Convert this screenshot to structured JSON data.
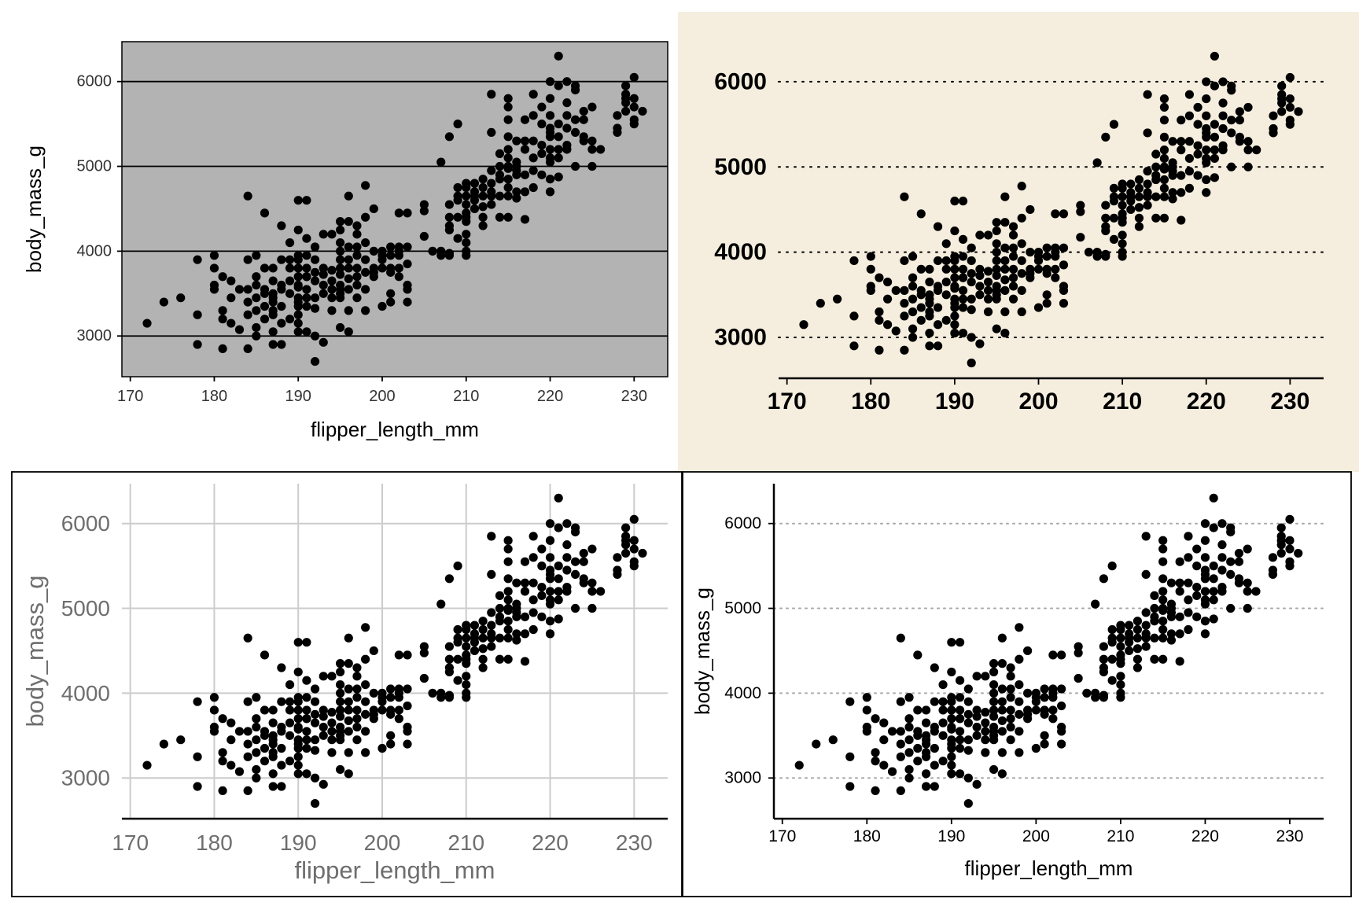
{
  "colors": {
    "point": "#000000",
    "panel_grey_bg": "#b3b3b3",
    "panel_beige_bg": "#f5eede",
    "light_gridline": "#cccccc",
    "muted_text": "#6e6e6e",
    "dotted_grid_light": "#a8a8a8"
  },
  "chart_data": [
    {
      "type": "scatter",
      "panel": "top-left",
      "style": "grey panel background, solid black horizontal major gridlines, plot box border",
      "xlabel": "flipper_length_mm",
      "ylabel": "body_mass_g",
      "xlim": [
        169,
        234
      ],
      "ylim": [
        2520,
        6470
      ],
      "x_ticks": [
        "170",
        "180",
        "190",
        "200",
        "210",
        "220",
        "230"
      ],
      "y_ticks": [
        "3000",
        "4000",
        "5000",
        "6000"
      ],
      "grid": "horizontal-major",
      "legend": "none",
      "source": "points"
    },
    {
      "type": "scatter",
      "panel": "top-right",
      "style": "beige background, dotted horizontal gridlines, bold large tick labels, x axis line only, no axis titles",
      "xlabel": "",
      "ylabel": "",
      "xlim": [
        169,
        234
      ],
      "ylim": [
        2520,
        6470
      ],
      "x_ticks": [
        "170",
        "180",
        "190",
        "200",
        "210",
        "220",
        "230"
      ],
      "y_ticks": [
        "3000",
        "4000",
        "5000",
        "6000"
      ],
      "grid": "horizontal-major-dotted",
      "legend": "none",
      "source": "points"
    },
    {
      "type": "scatter",
      "panel": "bottom-left",
      "style": "white background, light grey major gridlines both axes, grey text, x axis line, outer border",
      "xlabel": "flipper_length_mm",
      "ylabel": "body_mass_g",
      "xlim": [
        169,
        234
      ],
      "ylim": [
        2520,
        6470
      ],
      "x_ticks": [
        "170",
        "180",
        "190",
        "200",
        "210",
        "220",
        "230"
      ],
      "y_ticks": [
        "3000",
        "4000",
        "5000",
        "6000"
      ],
      "grid": "major-both",
      "legend": "none",
      "source": "points"
    },
    {
      "type": "scatter",
      "panel": "bottom-right",
      "style": "white background, light grey dotted horizontal gridlines, x and y axis lines with ticks, outer border",
      "xlabel": "flipper_length_mm",
      "ylabel": "body_mass_g",
      "xlim": [
        169,
        234
      ],
      "ylim": [
        2520,
        6470
      ],
      "x_ticks": [
        "170",
        "180",
        "190",
        "200",
        "210",
        "220",
        "230"
      ],
      "y_ticks": [
        "3000",
        "4000",
        "5000",
        "6000"
      ],
      "grid": "horizontal-major-dotted",
      "legend": "none",
      "source": "points"
    }
  ],
  "points": [
    [
      172,
      3150
    ],
    [
      174,
      3400
    ],
    [
      176,
      3450
    ],
    [
      178,
      3900
    ],
    [
      178,
      3250
    ],
    [
      178,
      2900
    ],
    [
      180,
      3950
    ],
    [
      180,
      3600
    ],
    [
      180,
      3550
    ],
    [
      180,
      3800
    ],
    [
      181,
      3300
    ],
    [
      181,
      3700
    ],
    [
      181,
      3200
    ],
    [
      181,
      2850
    ],
    [
      182,
      3150
    ],
    [
      182,
      3450
    ],
    [
      182,
      3650
    ],
    [
      183,
      3075
    ],
    [
      183,
      3550
    ],
    [
      184,
      3550
    ],
    [
      184,
      3900
    ],
    [
      184,
      3400
    ],
    [
      184,
      2850
    ],
    [
      184,
      4650
    ],
    [
      184,
      3250
    ],
    [
      185,
      3700
    ],
    [
      185,
      3450
    ],
    [
      185,
      3950
    ],
    [
      185,
      3600
    ],
    [
      185,
      3100
    ],
    [
      185,
      3000
    ],
    [
      185,
      3300
    ],
    [
      186,
      3350
    ],
    [
      186,
      3500
    ],
    [
      186,
      4450
    ],
    [
      186,
      3800
    ],
    [
      186,
      3550
    ],
    [
      186,
      3200
    ],
    [
      187,
      3450
    ],
    [
      187,
      3800
    ],
    [
      187,
      3650
    ],
    [
      187,
      3500
    ],
    [
      187,
      3250
    ],
    [
      187,
      3400
    ],
    [
      187,
      3050
    ],
    [
      187,
      2900
    ],
    [
      187,
      3300
    ],
    [
      188,
      3600
    ],
    [
      188,
      3900
    ],
    [
      188,
      3350
    ],
    [
      188,
      4300
    ],
    [
      188,
      3550
    ],
    [
      188,
      3150
    ],
    [
      188,
      2900
    ],
    [
      189,
      3500
    ],
    [
      189,
      3200
    ],
    [
      189,
      4100
    ],
    [
      189,
      3800
    ],
    [
      189,
      3650
    ],
    [
      189,
      3900
    ],
    [
      190,
      3700
    ],
    [
      190,
      4250
    ],
    [
      190,
      3450
    ],
    [
      190,
      3900
    ],
    [
      190,
      3350
    ],
    [
      190,
      3600
    ],
    [
      190,
      3050
    ],
    [
      190,
      3800
    ],
    [
      190,
      4600
    ],
    [
      190,
      3950
    ],
    [
      190,
      3400
    ],
    [
      190,
      3150
    ],
    [
      190,
      3250
    ],
    [
      190,
      3575
    ],
    [
      191,
      3700
    ],
    [
      191,
      3450
    ],
    [
      191,
      4600
    ],
    [
      191,
      3350
    ],
    [
      191,
      3050
    ],
    [
      191,
      3550
    ],
    [
      191,
      3800
    ],
    [
      191,
      3950
    ],
    [
      191,
      4150
    ],
    [
      191,
      3700
    ],
    [
      192,
      2700
    ],
    [
      192,
      3750
    ],
    [
      192,
      3650
    ],
    [
      192,
      3900
    ],
    [
      192,
      3000
    ],
    [
      192,
      3325
    ],
    [
      192,
      3450
    ],
    [
      192,
      4050
    ],
    [
      193,
      3725
    ],
    [
      193,
      4200
    ],
    [
      193,
      3500
    ],
    [
      193,
      3800
    ],
    [
      193,
      2925
    ],
    [
      193,
      3600
    ],
    [
      194,
      3775
    ],
    [
      194,
      3550
    ],
    [
      194,
      4200
    ],
    [
      194,
      3450
    ],
    [
      194,
      3650
    ],
    [
      194,
      3300
    ],
    [
      195,
      3725
    ],
    [
      195,
      3900
    ],
    [
      195,
      4000
    ],
    [
      195,
      3600
    ],
    [
      195,
      4350
    ],
    [
      195,
      3500
    ],
    [
      195,
      4250
    ],
    [
      195,
      3800
    ],
    [
      195,
      3100
    ],
    [
      195,
      4100
    ],
    [
      195,
      3550
    ],
    [
      195,
      3450
    ],
    [
      196,
      3675
    ],
    [
      196,
      3900
    ],
    [
      196,
      4350
    ],
    [
      196,
      4050
    ],
    [
      196,
      3800
    ],
    [
      196,
      3550
    ],
    [
      196,
      4650
    ],
    [
      196,
      3300
    ],
    [
      196,
      3050
    ],
    [
      197,
      3950
    ],
    [
      197,
      4200
    ],
    [
      197,
      3800
    ],
    [
      197,
      3600
    ],
    [
      197,
      4050
    ],
    [
      197,
      4300
    ],
    [
      197,
      3700
    ],
    [
      197,
      3450
    ],
    [
      198,
      3900
    ],
    [
      198,
      4400
    ],
    [
      198,
      3750
    ],
    [
      198,
      3550
    ],
    [
      198,
      4100
    ],
    [
      198,
      4775
    ],
    [
      198,
      3300
    ],
    [
      199,
      3800
    ],
    [
      199,
      4000
    ],
    [
      199,
      3700
    ],
    [
      199,
      4500
    ],
    [
      199,
      3750
    ],
    [
      200,
      3900
    ],
    [
      200,
      3950
    ],
    [
      200,
      3800
    ],
    [
      200,
      4000
    ],
    [
      200,
      3350
    ],
    [
      201,
      3800
    ],
    [
      201,
      3950
    ],
    [
      201,
      4050
    ],
    [
      201,
      3750
    ],
    [
      201,
      3500
    ],
    [
      201,
      3400
    ],
    [
      202,
      3950
    ],
    [
      202,
      4050
    ],
    [
      202,
      3800
    ],
    [
      202,
      3700
    ],
    [
      202,
      4000
    ],
    [
      202,
      4450
    ],
    [
      203,
      3850
    ],
    [
      203,
      3600
    ],
    [
      203,
      4050
    ],
    [
      203,
      3550
    ],
    [
      203,
      3400
    ],
    [
      203,
      4450
    ],
    [
      205,
      4550
    ],
    [
      205,
      4475
    ],
    [
      205,
      4175
    ],
    [
      206,
      4000
    ],
    [
      207,
      3950
    ],
    [
      207,
      4000
    ],
    [
      207,
      5050
    ],
    [
      208,
      3975
    ],
    [
      208,
      5350
    ],
    [
      208,
      4250
    ],
    [
      208,
      4550
    ],
    [
      208,
      3950
    ],
    [
      208,
      4400
    ],
    [
      208,
      4300
    ],
    [
      209,
      4650
    ],
    [
      209,
      4600
    ],
    [
      209,
      4400
    ],
    [
      209,
      5500
    ],
    [
      209,
      4750
    ],
    [
      209,
      4150
    ],
    [
      210,
      4200
    ],
    [
      210,
      4800
    ],
    [
      210,
      4400
    ],
    [
      210,
      4650
    ],
    [
      210,
      4000
    ],
    [
      210,
      4750
    ],
    [
      210,
      4350
    ],
    [
      210,
      4100
    ],
    [
      210,
      3950
    ],
    [
      210,
      4550
    ],
    [
      210,
      4450
    ],
    [
      211,
      4800
    ],
    [
      211,
      4700
    ],
    [
      211,
      4500
    ],
    [
      211,
      4600
    ],
    [
      211,
      4650
    ],
    [
      212,
      4850
    ],
    [
      212,
      4400
    ],
    [
      212,
      4750
    ],
    [
      212,
      4650
    ],
    [
      212,
      4300
    ],
    [
      212,
      4525
    ],
    [
      213,
      4550
    ],
    [
      213,
      4950
    ],
    [
      213,
      4800
    ],
    [
      213,
      4700
    ],
    [
      213,
      4650
    ],
    [
      213,
      5850
    ],
    [
      213,
      5400
    ],
    [
      214,
      4900
    ],
    [
      214,
      5000
    ],
    [
      214,
      4850
    ],
    [
      214,
      5150
    ],
    [
      214,
      4400
    ],
    [
      214,
      4650
    ],
    [
      215,
      5550
    ],
    [
      215,
      5200
    ],
    [
      215,
      5000
    ],
    [
      215,
      4850
    ],
    [
      215,
      5350
    ],
    [
      215,
      5100
    ],
    [
      215,
      4975
    ],
    [
      215,
      4750
    ],
    [
      215,
      4650
    ],
    [
      215,
      5700
    ],
    [
      215,
      5800
    ],
    [
      215,
      4400
    ],
    [
      216,
      4950
    ],
    [
      216,
      5000
    ],
    [
      216,
      4900
    ],
    [
      216,
      5300
    ],
    [
      216,
      4700
    ],
    [
      216,
      5050
    ],
    [
      216,
      4625
    ],
    [
      217,
      5300
    ],
    [
      217,
      4375
    ],
    [
      217,
      5200
    ],
    [
      217,
      4900
    ],
    [
      217,
      5550
    ],
    [
      217,
      4700
    ],
    [
      218,
      5600
    ],
    [
      218,
      5850
    ],
    [
      218,
      4950
    ],
    [
      218,
      5100
    ],
    [
      218,
      5300
    ],
    [
      218,
      4750
    ],
    [
      219,
      5700
    ],
    [
      219,
      5500
    ],
    [
      219,
      4900
    ],
    [
      219,
      5250
    ],
    [
      219,
      5150
    ],
    [
      220,
      5800
    ],
    [
      220,
      5200
    ],
    [
      220,
      5350
    ],
    [
      220,
      5400
    ],
    [
      220,
      5050
    ],
    [
      220,
      5450
    ],
    [
      220,
      5600
    ],
    [
      220,
      6000
    ],
    [
      220,
      4700
    ],
    [
      220,
      4850
    ],
    [
      220,
      5100
    ],
    [
      221,
      5950
    ],
    [
      221,
      6300
    ],
    [
      221,
      5100
    ],
    [
      221,
      4875
    ],
    [
      221,
      5200
    ],
    [
      221,
      5350
    ],
    [
      221,
      5500
    ],
    [
      222,
      5250
    ],
    [
      222,
      6000
    ],
    [
      222,
      5600
    ],
    [
      222,
      5450
    ],
    [
      222,
      5750
    ],
    [
      222,
      5200
    ],
    [
      223,
      5550
    ],
    [
      223,
      5900
    ],
    [
      223,
      5400
    ],
    [
      223,
      5950
    ],
    [
      223,
      5000
    ],
    [
      224,
      5350
    ],
    [
      224,
      5650
    ],
    [
      224,
      5550
    ],
    [
      224,
      5300
    ],
    [
      225,
      5300
    ],
    [
      225,
      5700
    ],
    [
      225,
      5000
    ],
    [
      225,
      5200
    ],
    [
      226,
      5200
    ],
    [
      228,
      5600
    ],
    [
      228,
      5450
    ],
    [
      228,
      5400
    ],
    [
      229,
      5800
    ],
    [
      229,
      5950
    ],
    [
      229,
      5750
    ],
    [
      229,
      5650
    ],
    [
      229,
      5850
    ],
    [
      230,
      5800
    ],
    [
      230,
      6050
    ],
    [
      230,
      5550
    ],
    [
      230,
      5700
    ],
    [
      230,
      5500
    ],
    [
      231,
      5650
    ]
  ]
}
